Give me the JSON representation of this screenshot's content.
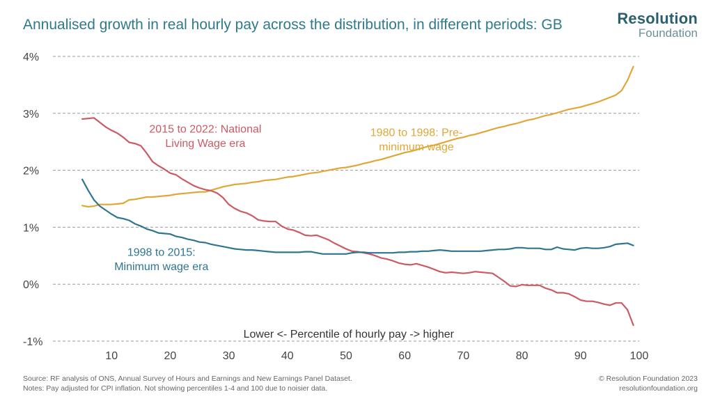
{
  "header": {
    "title": "Annualised growth in real hourly pay across the distribution, in different periods: GB",
    "brand_main": "Resolution",
    "brand_sub": "Foundation"
  },
  "footer": {
    "source": "Source: RF analysis of ONS, Annual Survey of Hours and Earnings and New Earnings Panel Dataset.",
    "notes": "Notes: Pay adjusted for CPI inflation. Not showing percentiles 1-4 and 100 due to noisier data.",
    "copyright": "© Resolution Foundation 2023",
    "website": "resolutionfoundation.org"
  },
  "chart_data": {
    "type": "line",
    "title": "Annualised growth in real hourly pay across the distribution, in different periods: GB",
    "xlabel": "Lower <- Percentile of hourly pay -> higher",
    "ylabel": "",
    "xlim": [
      0,
      100
    ],
    "ylim": [
      -1,
      4
    ],
    "x_ticks": [
      10,
      20,
      30,
      40,
      50,
      60,
      70,
      80,
      90,
      100
    ],
    "y_ticks": [
      {
        "value": 4,
        "label": "4%"
      },
      {
        "value": 3,
        "label": "3%"
      },
      {
        "value": 2,
        "label": "2%"
      },
      {
        "value": 1,
        "label": "1%"
      },
      {
        "value": 0,
        "label": "0%"
      },
      {
        "value": -1,
        "label": "-1%"
      }
    ],
    "grid": "horizontal-dashed",
    "series": [
      {
        "name": "1980 to 1998: Pre-minimum wage",
        "label_lines": [
          "1980 to 1998: Pre-",
          "minimum wage"
        ],
        "color": "#e0a735",
        "x": [
          5,
          6,
          7,
          8,
          9,
          10,
          11,
          12,
          13,
          14,
          15,
          16,
          17,
          18,
          19,
          20,
          21,
          22,
          23,
          24,
          25,
          26,
          27,
          28,
          29,
          30,
          31,
          32,
          33,
          34,
          35,
          36,
          37,
          38,
          39,
          40,
          41,
          42,
          43,
          44,
          45,
          46,
          47,
          48,
          49,
          50,
          51,
          52,
          53,
          54,
          55,
          56,
          57,
          58,
          59,
          60,
          61,
          62,
          63,
          64,
          65,
          66,
          67,
          68,
          69,
          70,
          71,
          72,
          73,
          74,
          75,
          76,
          77,
          78,
          79,
          80,
          81,
          82,
          83,
          84,
          85,
          86,
          87,
          88,
          89,
          90,
          91,
          92,
          93,
          94,
          95,
          96,
          97,
          98,
          99
        ],
        "y": [
          1.38,
          1.36,
          1.37,
          1.4,
          1.4,
          1.4,
          1.41,
          1.42,
          1.48,
          1.49,
          1.51,
          1.53,
          1.53,
          1.54,
          1.55,
          1.56,
          1.58,
          1.59,
          1.6,
          1.61,
          1.62,
          1.62,
          1.65,
          1.68,
          1.71,
          1.73,
          1.75,
          1.76,
          1.77,
          1.79,
          1.8,
          1.82,
          1.83,
          1.84,
          1.86,
          1.88,
          1.89,
          1.91,
          1.93,
          1.95,
          1.96,
          1.98,
          2.0,
          2.02,
          2.04,
          2.05,
          2.07,
          2.09,
          2.12,
          2.14,
          2.17,
          2.19,
          2.22,
          2.25,
          2.28,
          2.31,
          2.33,
          2.36,
          2.39,
          2.42,
          2.44,
          2.47,
          2.5,
          2.53,
          2.56,
          2.58,
          2.61,
          2.63,
          2.66,
          2.69,
          2.72,
          2.75,
          2.77,
          2.8,
          2.82,
          2.85,
          2.88,
          2.9,
          2.93,
          2.96,
          2.98,
          3.01,
          3.04,
          3.07,
          3.09,
          3.11,
          3.14,
          3.17,
          3.2,
          3.24,
          3.28,
          3.32,
          3.4,
          3.58,
          3.82
        ]
      },
      {
        "name": "2015 to 2022: National Living Wage era",
        "label_lines": [
          "2015 to 2022: National",
          "Living Wage era"
        ],
        "color": "#cb5a64",
        "x": [
          5,
          6,
          7,
          8,
          9,
          10,
          11,
          12,
          13,
          14,
          15,
          16,
          17,
          18,
          19,
          20,
          21,
          22,
          23,
          24,
          25,
          26,
          27,
          28,
          29,
          30,
          31,
          32,
          33,
          34,
          35,
          36,
          37,
          38,
          39,
          40,
          41,
          42,
          43,
          44,
          45,
          46,
          47,
          48,
          49,
          50,
          51,
          52,
          53,
          54,
          55,
          56,
          57,
          58,
          59,
          60,
          61,
          62,
          63,
          64,
          65,
          66,
          67,
          68,
          69,
          70,
          71,
          72,
          73,
          74,
          75,
          76,
          77,
          78,
          79,
          80,
          81,
          82,
          83,
          84,
          85,
          86,
          87,
          88,
          89,
          90,
          91,
          92,
          93,
          94,
          95,
          96,
          97,
          98,
          99
        ],
        "y": [
          2.9,
          2.91,
          2.92,
          2.84,
          2.76,
          2.7,
          2.65,
          2.58,
          2.49,
          2.47,
          2.43,
          2.3,
          2.15,
          2.08,
          2.02,
          1.95,
          1.92,
          1.85,
          1.79,
          1.73,
          1.69,
          1.66,
          1.64,
          1.6,
          1.52,
          1.4,
          1.33,
          1.28,
          1.25,
          1.2,
          1.13,
          1.11,
          1.1,
          1.1,
          1.02,
          0.97,
          0.95,
          0.91,
          0.86,
          0.85,
          0.86,
          0.82,
          0.78,
          0.72,
          0.67,
          0.62,
          0.58,
          0.57,
          0.55,
          0.53,
          0.5,
          0.46,
          0.44,
          0.41,
          0.37,
          0.35,
          0.34,
          0.36,
          0.33,
          0.3,
          0.26,
          0.22,
          0.2,
          0.21,
          0.2,
          0.19,
          0.2,
          0.22,
          0.21,
          0.2,
          0.19,
          0.12,
          0.05,
          -0.03,
          -0.04,
          -0.01,
          -0.02,
          -0.02,
          -0.02,
          -0.07,
          -0.1,
          -0.15,
          -0.15,
          -0.17,
          -0.22,
          -0.28,
          -0.3,
          -0.3,
          -0.32,
          -0.35,
          -0.37,
          -0.33,
          -0.33,
          -0.45,
          -0.72
        ]
      },
      {
        "name": "1998 to 2015: Minimum wage era",
        "label_lines": [
          "1998 to 2015:",
          "Minimum wage era"
        ],
        "color": "#2f7590",
        "x": [
          5,
          6,
          7,
          8,
          9,
          10,
          11,
          12,
          13,
          14,
          15,
          16,
          17,
          18,
          19,
          20,
          21,
          22,
          23,
          24,
          25,
          26,
          27,
          28,
          29,
          30,
          31,
          32,
          33,
          34,
          35,
          36,
          37,
          38,
          39,
          40,
          41,
          42,
          43,
          44,
          45,
          46,
          47,
          48,
          49,
          50,
          51,
          52,
          53,
          54,
          55,
          56,
          57,
          58,
          59,
          60,
          61,
          62,
          63,
          64,
          65,
          66,
          67,
          68,
          69,
          70,
          71,
          72,
          73,
          74,
          75,
          76,
          77,
          78,
          79,
          80,
          81,
          82,
          83,
          84,
          85,
          86,
          87,
          88,
          89,
          90,
          91,
          92,
          93,
          94,
          95,
          96,
          97,
          98,
          99
        ],
        "y": [
          1.84,
          1.65,
          1.48,
          1.37,
          1.3,
          1.23,
          1.17,
          1.15,
          1.12,
          1.06,
          1.02,
          0.97,
          0.94,
          0.9,
          0.89,
          0.88,
          0.84,
          0.82,
          0.79,
          0.77,
          0.74,
          0.73,
          0.7,
          0.68,
          0.66,
          0.64,
          0.62,
          0.61,
          0.6,
          0.6,
          0.59,
          0.58,
          0.57,
          0.56,
          0.56,
          0.56,
          0.56,
          0.56,
          0.57,
          0.57,
          0.55,
          0.53,
          0.53,
          0.53,
          0.53,
          0.53,
          0.55,
          0.56,
          0.56,
          0.55,
          0.55,
          0.55,
          0.55,
          0.55,
          0.56,
          0.56,
          0.57,
          0.57,
          0.58,
          0.58,
          0.59,
          0.6,
          0.59,
          0.58,
          0.58,
          0.58,
          0.58,
          0.58,
          0.58,
          0.59,
          0.6,
          0.61,
          0.61,
          0.62,
          0.64,
          0.64,
          0.63,
          0.63,
          0.63,
          0.61,
          0.61,
          0.65,
          0.62,
          0.61,
          0.6,
          0.63,
          0.64,
          0.63,
          0.63,
          0.64,
          0.66,
          0.7,
          0.71,
          0.72,
          0.68
        ]
      }
    ]
  }
}
